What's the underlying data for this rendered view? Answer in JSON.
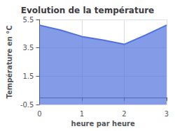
{
  "chart_data": {
    "type": "area",
    "title": "Evolution de la température",
    "xlabel": "heure par heure",
    "ylabel": "Température en °C",
    "x": [
      0,
      0.5,
      1,
      1.5,
      2,
      2.5,
      3
    ],
    "values": [
      5.1,
      4.75,
      4.3,
      4.05,
      3.75,
      4.4,
      5.1
    ],
    "xlim": [
      0,
      3
    ],
    "xticks": [
      0,
      1,
      2,
      3
    ],
    "ylim": [
      -0.5,
      5.5
    ],
    "yticks": [
      -0.5,
      1.5,
      3.5,
      5.5
    ],
    "grid": true
  }
}
